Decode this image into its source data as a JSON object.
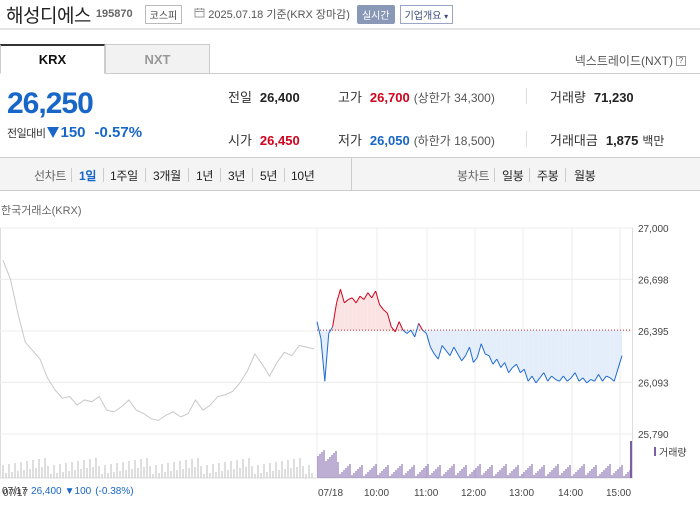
{
  "header": {
    "stock_name": "해성디에스",
    "stock_code": "195870",
    "market_badge": "코스피",
    "date_text": "2025.07.18 기준(KRX 장마감)",
    "realtime_label": "실시간",
    "company_button": "기업개요"
  },
  "tabs": [
    {
      "label": "KRX",
      "active": true
    },
    {
      "label": "NXT",
      "active": false
    }
  ],
  "nxt_link": "넥스트레이드(NXT)",
  "price": {
    "current": "26,250",
    "change_label": "전일대비",
    "change_value": "150",
    "change_pct": "-0.57%",
    "direction": "down"
  },
  "stats": {
    "prev_close": {
      "label": "전일",
      "value": "26,400"
    },
    "high": {
      "label": "고가",
      "value": "26,700",
      "limit_label": "(상한가 34,300)"
    },
    "volume": {
      "label": "거래량",
      "value": "71,230"
    },
    "open": {
      "label": "시가",
      "value": "26,450"
    },
    "low": {
      "label": "저가",
      "value": "26,050",
      "limit_label": "(하한가 18,500)"
    },
    "amount": {
      "label": "거래대금",
      "value": "1,875",
      "unit": "백만"
    }
  },
  "period_bar": {
    "line_label": "선차트",
    "line_periods": [
      "1일",
      "1주일",
      "3개월",
      "1년",
      "3년",
      "5년",
      "10년"
    ],
    "active_period": "1일",
    "candle_label": "봉차트",
    "candle_periods": [
      "일봉",
      "주봉",
      "월봉"
    ]
  },
  "chart_data": {
    "type": "line",
    "exchange_label": "한국거래소(KRX)",
    "y_ticks": [
      "27,000",
      "26,698",
      "26,395",
      "26,093",
      "25,790"
    ],
    "ylim": [
      25790,
      27000
    ],
    "baseline": 26400,
    "x_labels": [
      "07/17",
      "07/18",
      "10:00",
      "11:00",
      "12:00",
      "13:00",
      "14:00",
      "15:00"
    ],
    "prev_day_series": [
      26810,
      26700,
      26500,
      26330,
      26280,
      26230,
      26120,
      26050,
      26000,
      26010,
      25960,
      25990,
      25980,
      26010,
      25930,
      25920,
      25950,
      25990,
      25930,
      25910,
      25880,
      25870,
      25900,
      25920,
      25890,
      25910,
      25990,
      25930,
      25960,
      26010,
      26020,
      26040,
      26090,
      26160,
      26260,
      26200,
      26130,
      26210,
      26270,
      26250,
      26310,
      26300,
      26290
    ],
    "today_series": [
      {
        "t": "09:00",
        "v": 26450
      },
      {
        "t": "09:05",
        "v": 26350
      },
      {
        "t": "09:10",
        "v": 26100
      },
      {
        "t": "09:15",
        "v": 26380
      },
      {
        "t": "09:20",
        "v": 26420
      },
      {
        "t": "09:25",
        "v": 26560
      },
      {
        "t": "09:30",
        "v": 26640
      },
      {
        "t": "09:35",
        "v": 26560
      },
      {
        "t": "09:40",
        "v": 26580
      },
      {
        "t": "09:45",
        "v": 26590
      },
      {
        "t": "09:50",
        "v": 26560
      },
      {
        "t": "09:55",
        "v": 26600
      },
      {
        "t": "10:00",
        "v": 26580
      },
      {
        "t": "10:05",
        "v": 26620
      },
      {
        "t": "10:10",
        "v": 26590
      },
      {
        "t": "10:15",
        "v": 26630
      },
      {
        "t": "10:20",
        "v": 26550
      },
      {
        "t": "10:25",
        "v": 26520
      },
      {
        "t": "10:30",
        "v": 26500
      },
      {
        "t": "10:35",
        "v": 26420
      },
      {
        "t": "10:40",
        "v": 26390
      },
      {
        "t": "10:45",
        "v": 26450
      },
      {
        "t": "10:50",
        "v": 26400
      },
      {
        "t": "10:55",
        "v": 26380
      },
      {
        "t": "11:00",
        "v": 26400
      },
      {
        "t": "11:05",
        "v": 26360
      },
      {
        "t": "11:10",
        "v": 26440
      },
      {
        "t": "11:15",
        "v": 26400
      },
      {
        "t": "11:20",
        "v": 26380
      },
      {
        "t": "11:25",
        "v": 26300
      },
      {
        "t": "11:30",
        "v": 26260
      },
      {
        "t": "11:35",
        "v": 26230
      },
      {
        "t": "11:40",
        "v": 26310
      },
      {
        "t": "11:45",
        "v": 26280
      },
      {
        "t": "11:50",
        "v": 26250
      },
      {
        "t": "11:55",
        "v": 26300
      },
      {
        "t": "12:00",
        "v": 26260
      },
      {
        "t": "12:05",
        "v": 26220
      },
      {
        "t": "12:10",
        "v": 26250
      },
      {
        "t": "12:15",
        "v": 26300
      },
      {
        "t": "12:20",
        "v": 26210
      },
      {
        "t": "12:25",
        "v": 26240
      },
      {
        "t": "12:30",
        "v": 26320
      },
      {
        "t": "12:35",
        "v": 26260
      },
      {
        "t": "12:40",
        "v": 26250
      },
      {
        "t": "12:45",
        "v": 26200
      },
      {
        "t": "12:50",
        "v": 26230
      },
      {
        "t": "12:55",
        "v": 26180
      },
      {
        "t": "13:00",
        "v": 26210
      },
      {
        "t": "13:05",
        "v": 26150
      },
      {
        "t": "13:10",
        "v": 26180
      },
      {
        "t": "13:15",
        "v": 26200
      },
      {
        "t": "13:20",
        "v": 26150
      },
      {
        "t": "13:25",
        "v": 26170
      },
      {
        "t": "13:30",
        "v": 26100
      },
      {
        "t": "13:35",
        "v": 26130
      },
      {
        "t": "13:40",
        "v": 26090
      },
      {
        "t": "13:45",
        "v": 26120
      },
      {
        "t": "13:50",
        "v": 26150
      },
      {
        "t": "13:55",
        "v": 26100
      },
      {
        "t": "14:00",
        "v": 26130
      },
      {
        "t": "14:05",
        "v": 26110
      },
      {
        "t": "14:10",
        "v": 26100
      },
      {
        "t": "14:15",
        "v": 26130
      },
      {
        "t": "14:20",
        "v": 26100
      },
      {
        "t": "14:25",
        "v": 26120
      },
      {
        "t": "14:30",
        "v": 26150
      },
      {
        "t": "14:35",
        "v": 26100
      },
      {
        "t": "14:40",
        "v": 26120
      },
      {
        "t": "14:45",
        "v": 26090
      },
      {
        "t": "14:50",
        "v": 26110
      },
      {
        "t": "14:55",
        "v": 26100
      },
      {
        "t": "15:00",
        "v": 26140
      },
      {
        "t": "15:05",
        "v": 26100
      },
      {
        "t": "15:10",
        "v": 26130
      },
      {
        "t": "15:15",
        "v": 26120
      },
      {
        "t": "15:20",
        "v": 26100
      },
      {
        "t": "15:30",
        "v": 26250
      }
    ],
    "colors": {
      "up": "#d0021b",
      "down": "#1f6bd1",
      "prev": "#c8c8c8",
      "up_fill": "#fbe3e3",
      "down_fill": "#e4edfa",
      "volume_today": "#7b5ea8",
      "volume_prev": "#bdbdbd"
    },
    "volume_legend": "거래량",
    "prev_info": {
      "date": "07/17",
      "close": "26,400",
      "change": "100",
      "pct": "(-0.38%)"
    }
  }
}
